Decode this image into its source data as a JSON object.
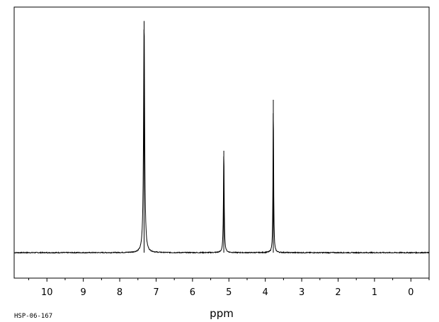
{
  "chart_data": {
    "type": "line",
    "title": "",
    "xlabel": "ppm",
    "ylabel": "",
    "xlim": [
      10.9,
      -0.5
    ],
    "ylim": [
      -0.11,
      1.06
    ],
    "x_reversed": true,
    "grid": false,
    "legend": "none",
    "x_major_ticks": [
      10,
      9,
      8,
      7,
      6,
      5,
      4,
      3,
      2,
      1,
      0
    ],
    "x_tick_labels": [
      "10",
      "9",
      "8",
      "7",
      "6",
      "5",
      "4",
      "3",
      "2",
      "1",
      "0"
    ],
    "baseline": 0.0,
    "peaks": [
      {
        "ppm": 7.33,
        "height": 1.0
      },
      {
        "ppm": 5.14,
        "height": 0.44
      },
      {
        "ppm": 3.78,
        "height": 0.66
      }
    ],
    "line_color": "#000000"
  },
  "footer": {
    "spectrum_code": "HSP-06-167"
  }
}
